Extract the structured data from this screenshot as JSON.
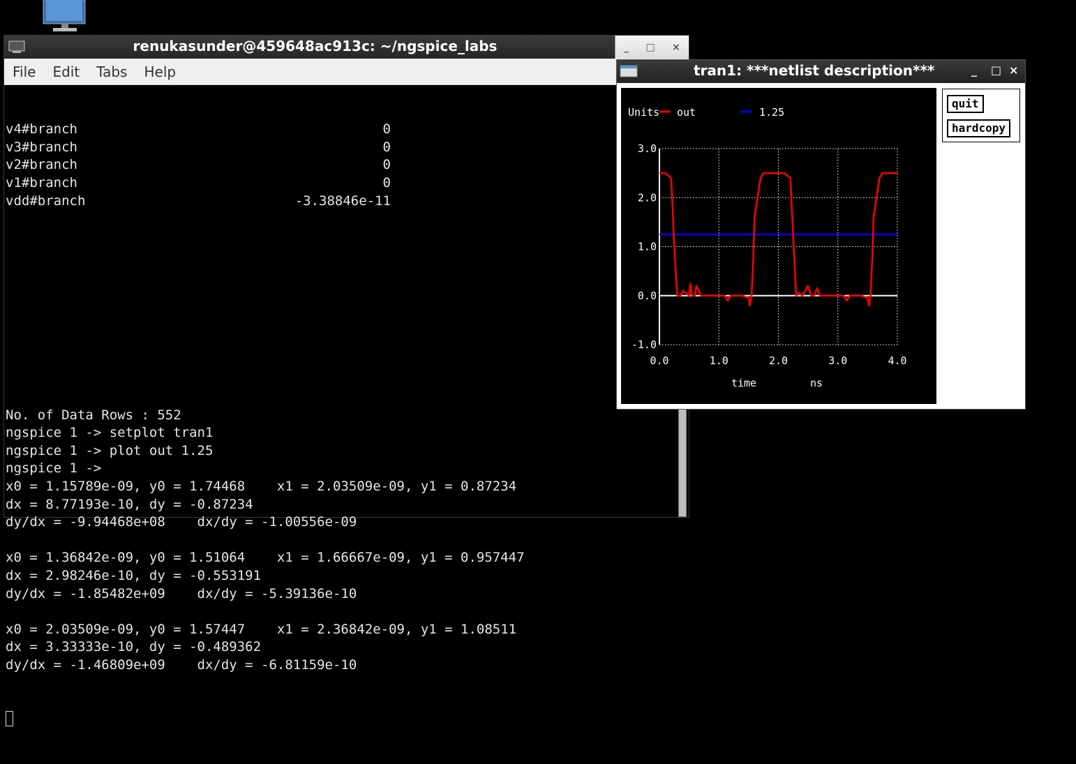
{
  "terminal": {
    "title": "renukasunder@459648ac913c: ~/ngspice_labs",
    "controls": [
      "_",
      "□",
      "×"
    ],
    "menu": [
      "File",
      "Edit",
      "Tabs",
      "Help"
    ],
    "branches": [
      {
        "name": "v4#branch",
        "value": "0"
      },
      {
        "name": "v3#branch",
        "value": "0"
      },
      {
        "name": "v2#branch",
        "value": "0"
      },
      {
        "name": "v1#branch",
        "value": "0"
      },
      {
        "name": "vdd#branch",
        "value": "-3.38846e-11"
      }
    ],
    "lines": [
      "No. of Data Rows : 552",
      "ngspice 1 -> setplot tran1",
      "ngspice 1 -> plot out 1.25",
      "ngspice 1 ->",
      "x0 = 1.15789e-09, y0 = 1.74468    x1 = 2.03509e-09, y1 = 0.87234",
      "dx = 8.77193e-10, dy = -0.87234",
      "dy/dx = -9.94468e+08    dx/dy = -1.00556e-09",
      "",
      "x0 = 1.36842e-09, y0 = 1.51064    x1 = 1.66667e-09, y1 = 0.957447",
      "dx = 2.98246e-10, dy = -0.553191",
      "dy/dx = -1.85482e+09    dx/dy = -5.39136e-10",
      "",
      "x0 = 2.03509e-09, y0 = 1.57447    x1 = 2.36842e-09, y1 = 1.08511",
      "dx = 3.33333e-10, dy = -0.489362",
      "dy/dx = -1.46809e+09    dx/dy = -6.81159e-10"
    ]
  },
  "plot_window": {
    "title": "tran1: ***netlist description***",
    "controls": [
      "_",
      "□",
      "×"
    ],
    "buttons": {
      "quit": "quit",
      "hardcopy": "hardcopy"
    }
  },
  "chart_data": {
    "type": "line",
    "units_label": "Units",
    "xlabel": "time",
    "xunit": "ns",
    "x_ticks": [
      "0.0",
      "1.0",
      "2.0",
      "3.0",
      "4.0"
    ],
    "y_ticks": [
      "-1.0",
      "0.0",
      "1.0",
      "2.0",
      "3.0"
    ],
    "xlim": [
      0,
      4
    ],
    "ylim": [
      -1,
      3
    ],
    "grid": true,
    "legend_placement": "top-left",
    "series": [
      {
        "name": "out",
        "color": "#ff0000",
        "x": [
          0,
          0.1,
          0.2,
          0.25,
          0.3,
          0.35,
          0.4,
          0.5,
          0.52,
          0.55,
          0.6,
          0.62,
          0.7,
          0.8,
          1.0,
          1.1,
          1.15,
          1.2,
          1.3,
          1.4,
          1.5,
          1.52,
          1.55,
          1.58,
          1.6,
          1.7,
          1.75,
          1.8,
          1.9,
          2.0,
          2.1,
          2.2,
          2.25,
          2.3,
          2.35,
          2.4,
          2.5,
          2.55,
          2.6,
          2.65,
          2.7,
          2.8,
          3.0,
          3.1,
          3.15,
          3.2,
          3.3,
          3.4,
          3.5,
          3.52,
          3.55,
          3.58,
          3.6,
          3.7,
          3.75,
          3.8,
          3.9,
          4.0
        ],
        "y": [
          2.5,
          2.5,
          2.4,
          1.0,
          0.0,
          0.0,
          0.1,
          0.0,
          0.25,
          0.0,
          0.0,
          0.2,
          0.0,
          0.0,
          0.0,
          0.0,
          -0.1,
          0.0,
          0.0,
          0.0,
          -0.05,
          -0.2,
          0.0,
          0.8,
          1.6,
          2.4,
          2.5,
          2.5,
          2.5,
          2.5,
          2.5,
          2.4,
          1.2,
          0.0,
          0.05,
          0.0,
          0.2,
          0.0,
          0.0,
          0.15,
          0.0,
          0.0,
          0.0,
          0.0,
          -0.1,
          0.0,
          0.0,
          0.0,
          -0.05,
          -0.2,
          0.0,
          0.8,
          1.6,
          2.4,
          2.5,
          2.5,
          2.5,
          2.5
        ]
      },
      {
        "name": "1.25",
        "color": "#0000ff",
        "x": [
          0,
          4
        ],
        "y": [
          1.25,
          1.25
        ]
      }
    ]
  }
}
